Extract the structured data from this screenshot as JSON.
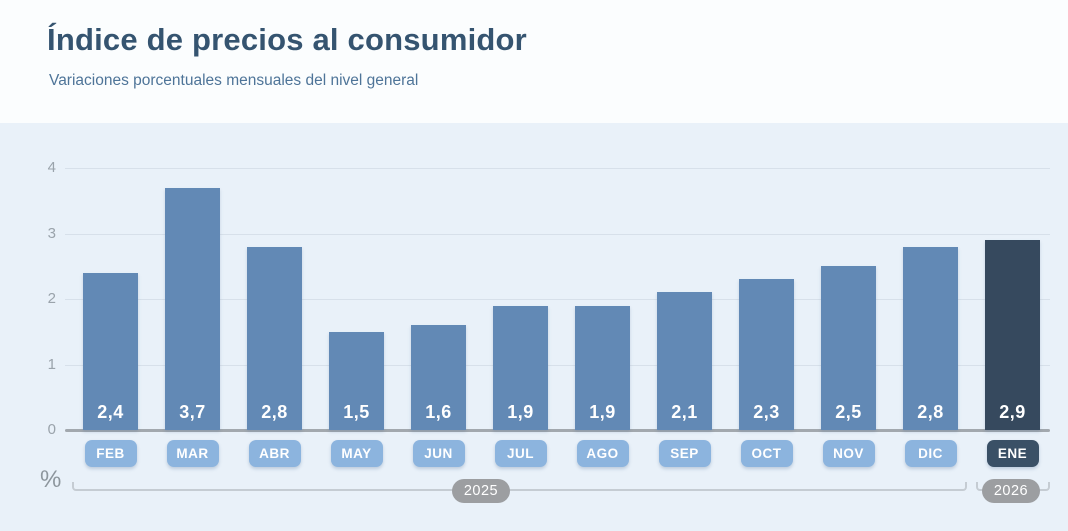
{
  "header": {
    "title": "Índice de precios al consumidor",
    "subtitle": "Variaciones porcentuales mensuales del nivel general"
  },
  "chart_data": {
    "type": "bar",
    "title": "Índice de precios al consumidor",
    "subtitle": "Variaciones porcentuales mensuales del nivel general",
    "unit_label": "%",
    "categories": [
      "FEB",
      "MAR",
      "ABR",
      "MAY",
      "JUN",
      "JUL",
      "AGO",
      "SEP",
      "OCT",
      "NOV",
      "DIC",
      "ENE"
    ],
    "values": [
      2.4,
      3.7,
      2.8,
      1.5,
      1.6,
      1.9,
      1.9,
      2.1,
      2.3,
      2.5,
      2.8,
      2.9
    ],
    "value_labels": [
      "2,4",
      "3,7",
      "2,8",
      "1,5",
      "1,6",
      "1,9",
      "1,9",
      "2,1",
      "2,3",
      "2,5",
      "2,8",
      "2,9"
    ],
    "highlight_index": 11,
    "ylim": [
      0,
      4
    ],
    "yticks": [
      0,
      1,
      2,
      3,
      4
    ],
    "grid": true,
    "legend": null,
    "year_groups": [
      {
        "label": "2025",
        "start_category": "FEB",
        "end_category": "DIC"
      },
      {
        "label": "2026",
        "start_category": "ENE",
        "end_category": "ENE"
      }
    ],
    "colors": {
      "bar": "#6289b5",
      "bar_highlight": "#36495e",
      "badge": "#8cb4de",
      "badge_highlight": "#3a5066",
      "value_text": "#ffffff",
      "year_pill": "#9c9ea1",
      "title_text": "#355470",
      "subtitle_text": "#4e7498",
      "chart_background": "#e9f1f9"
    }
  }
}
